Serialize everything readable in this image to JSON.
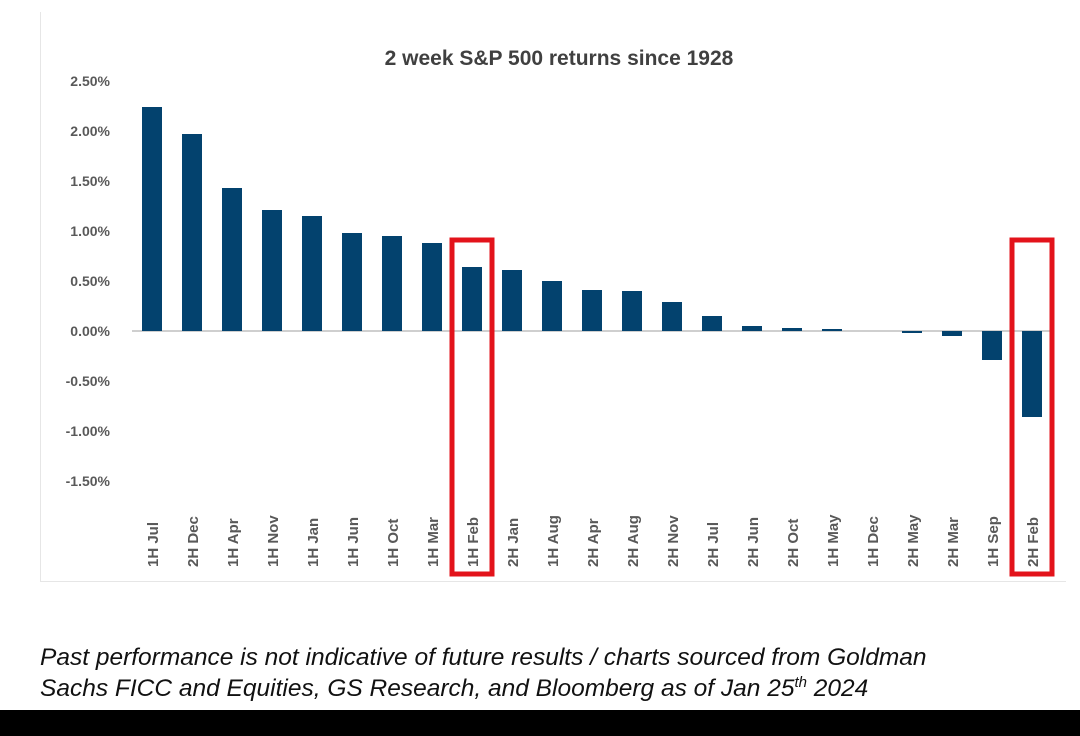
{
  "chart_data": {
    "type": "bar",
    "title": "2 week S&P 500 returns since 1928",
    "xlabel": "",
    "ylabel": "",
    "ylim": [
      -1.5,
      2.5
    ],
    "yticks": [
      2.5,
      2.0,
      1.5,
      1.0,
      0.5,
      0.0,
      -0.5,
      -1.0,
      -1.5
    ],
    "ytick_labels": [
      "2.50%",
      "2.00%",
      "1.50%",
      "1.00%",
      "0.50%",
      "0.00%",
      "-0.50%",
      "-1.00%",
      "-1.50%"
    ],
    "grid": false,
    "categories": [
      "1H Jul",
      "2H Dec",
      "1H Apr",
      "1H Nov",
      "1H Jan",
      "1H Jun",
      "1H Oct",
      "1H Mar",
      "1H Feb",
      "2H Jan",
      "1H Aug",
      "2H Apr",
      "2H Aug",
      "2H Nov",
      "2H Jul",
      "2H Jun",
      "2H Oct",
      "1H May",
      "1H Dec",
      "2H May",
      "2H Mar",
      "1H Sep",
      "2H Feb"
    ],
    "values": [
      2.24,
      1.97,
      1.43,
      1.21,
      1.15,
      0.98,
      0.95,
      0.88,
      0.64,
      0.61,
      0.5,
      0.41,
      0.4,
      0.29,
      0.15,
      0.05,
      0.03,
      0.02,
      0.0,
      -0.02,
      -0.05,
      -0.29,
      -0.86
    ],
    "highlighted": [
      "1H Feb",
      "2H Feb"
    ],
    "bar_color": "#03426e",
    "highlight_color": "#e3131b"
  },
  "caption": {
    "line1": "Past performance is not indicative of future results / charts sourced from Goldman",
    "line2_prefix": "Sachs FICC and Equities, GS Research, and Bloomberg as of Jan 25",
    "line2_sup": "th",
    "line2_suffix": " 2024"
  }
}
